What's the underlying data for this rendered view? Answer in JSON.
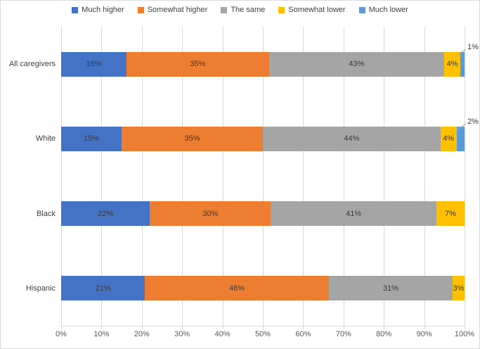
{
  "chart_data": {
    "type": "bar",
    "orientation": "horizontal",
    "stacked": true,
    "title": "",
    "categories": [
      "All caregivers",
      "White",
      "Black",
      "Hispanic"
    ],
    "series": [
      {
        "name": "Much higher",
        "color": "#4472C4",
        "values": [
          16,
          15,
          22,
          21
        ]
      },
      {
        "name": "Somewhat higher",
        "color": "#ED7D31",
        "values": [
          35,
          35,
          30,
          46
        ]
      },
      {
        "name": "The same",
        "color": "#A5A5A5",
        "values": [
          43,
          44,
          41,
          31
        ]
      },
      {
        "name": "Somewhat lower",
        "color": "#FFC000",
        "values": [
          4,
          4,
          7,
          3
        ]
      },
      {
        "name": "Much lower",
        "color": "#5B9BD5",
        "values": [
          1,
          2,
          0,
          0
        ]
      }
    ],
    "data_label_suffix": "%",
    "small_label_threshold": 3,
    "x_ticks": [
      "0%",
      "10%",
      "20%",
      "30%",
      "40%",
      "50%",
      "60%",
      "70%",
      "80%",
      "90%",
      "100%"
    ],
    "xlim": [
      0,
      100
    ],
    "grid": true,
    "legend_position": "top"
  },
  "style": {
    "grid_color": "#D9D9D9",
    "border_color": "#D9D9D9",
    "label_color": "#3a3a3a",
    "axis_text_color": "#595959",
    "leader_line_color": "#A6A6A6",
    "background": "#FFFFFF"
  }
}
